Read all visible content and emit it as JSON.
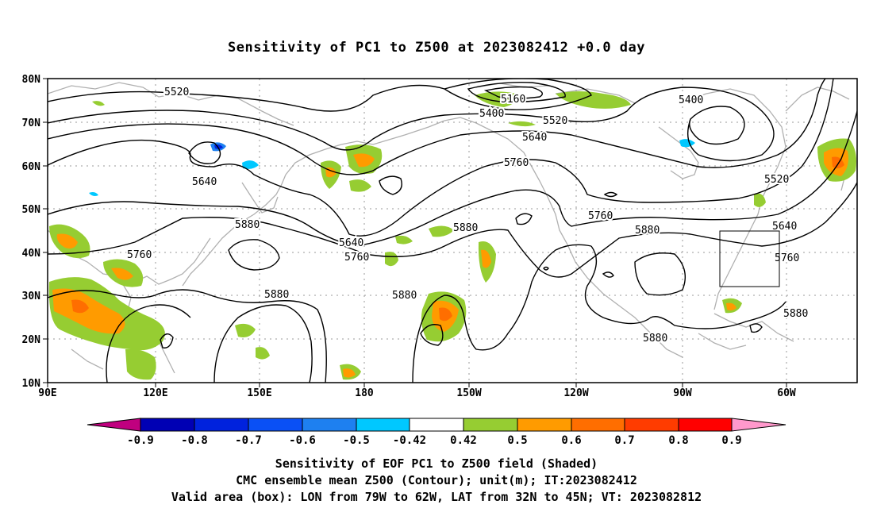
{
  "title": "Sensitivity of PC1 to Z500 at 2023082412 +0.0 day",
  "map": {
    "lat_ticks": [
      "80N",
      "70N",
      "60N",
      "50N",
      "40N",
      "30N",
      "20N",
      "10N"
    ],
    "lon_ticks": [
      "90E",
      "120E",
      "150E",
      "180",
      "150W",
      "120W",
      "90W",
      "60W"
    ],
    "contour_color": "#000000",
    "coast_color": "#b0b0b0",
    "grid_color": "#999999",
    "contour_labels": [
      {
        "text": "5520"
      },
      {
        "text": "5160"
      },
      {
        "text": "5400"
      },
      {
        "text": "5520"
      },
      {
        "text": "5400"
      },
      {
        "text": "5640"
      },
      {
        "text": "5760"
      },
      {
        "text": "5520"
      },
      {
        "text": "5640"
      },
      {
        "text": "5880"
      },
      {
        "text": "5640"
      },
      {
        "text": "5760"
      },
      {
        "text": "5880"
      },
      {
        "text": "5760"
      },
      {
        "text": "5880"
      },
      {
        "text": "5640"
      },
      {
        "text": "5760"
      },
      {
        "text": "5760"
      },
      {
        "text": "5880"
      },
      {
        "text": "5880"
      },
      {
        "text": "5880"
      },
      {
        "text": "5880"
      }
    ],
    "valid_box": {
      "lon_from": "79W",
      "lon_to": "62W",
      "lat_from": "32N",
      "lat_to": "45N"
    }
  },
  "colorbar": {
    "labels": [
      "-0.9",
      "-0.8",
      "-0.7",
      "-0.6",
      "-0.5",
      "-0.42",
      "0.42",
      "0.5",
      "0.6",
      "0.7",
      "0.8",
      "0.9"
    ],
    "colors": [
      "#c0007f",
      "#0000b4",
      "#0022dd",
      "#0a50f5",
      "#1e80f0",
      "#00c8ff",
      "#ffffff",
      "#96cd32",
      "#ff9b00",
      "#ff6e00",
      "#ff3c00",
      "#ff0000",
      "#ff99cc"
    ]
  },
  "footer": {
    "line1": "Sensitivity of EOF PC1 to Z500 field (Shaded)",
    "line2": "CMC ensemble mean Z500 (Contour); unit(m); IT:2023082412",
    "line3": "Valid area (box): LON from 79W to 62W, LAT from 32N to 45N; VT: 2023082812"
  }
}
